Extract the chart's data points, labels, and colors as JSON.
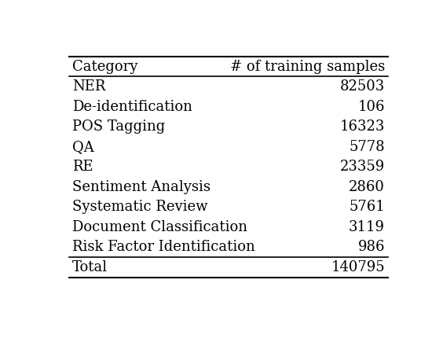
{
  "header": [
    "Category",
    "# of training samples"
  ],
  "rows": [
    [
      "NER",
      "82503"
    ],
    [
      "De-identification",
      "106"
    ],
    [
      "POS Tagging",
      "16323"
    ],
    [
      "QA",
      "5778"
    ],
    [
      "RE",
      "23359"
    ],
    [
      "Sentiment Analysis",
      "2860"
    ],
    [
      "Systematic Review",
      "5761"
    ],
    [
      "Document Classification",
      "3119"
    ],
    [
      "Risk Factor Identification",
      "986"
    ]
  ],
  "total_row": [
    "Total",
    "140795"
  ],
  "background_color": "#ffffff",
  "text_color": "#000000",
  "font_size": 13,
  "header_font_size": 13
}
